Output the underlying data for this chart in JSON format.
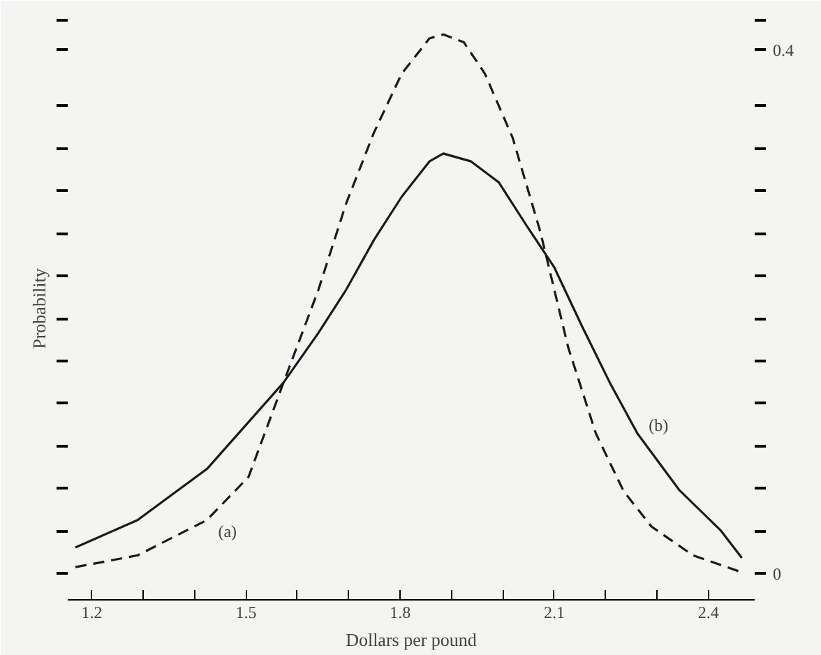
{
  "chart_data": {
    "type": "line",
    "xlabel": "Dollars per pound",
    "ylabel": "Probability",
    "xlim": [
      1.153,
      2.49
    ],
    "ylim": [
      -0.02,
      0.425
    ],
    "xticks": [
      {
        "value": 1.2,
        "label": "1.2"
      },
      {
        "value": 1.3,
        "label": null
      },
      {
        "value": 1.4,
        "label": null
      },
      {
        "value": 1.5,
        "label": "1.5"
      },
      {
        "value": 1.6,
        "label": null
      },
      {
        "value": 1.7,
        "label": null
      },
      {
        "value": 1.8,
        "label": "1.8"
      },
      {
        "value": 1.9,
        "label": null
      },
      {
        "value": 2.0,
        "label": null
      },
      {
        "value": 2.1,
        "label": "2.1"
      },
      {
        "value": 2.2,
        "label": null
      },
      {
        "value": 2.3,
        "label": null
      },
      {
        "value": 2.4,
        "label": "2.4"
      }
    ],
    "yticks": [
      0,
      {
        "value": 0.0325,
        "label": null
      },
      {
        "value": 0.065,
        "label": null
      },
      {
        "value": 0.0975,
        "label": null
      },
      {
        "value": 0.13,
        "label": null
      },
      {
        "value": 0.1625,
        "label": null
      },
      {
        "value": 0.195,
        "label": null
      },
      {
        "value": 0.2275,
        "label": null
      },
      {
        "value": 0.26,
        "label": null
      },
      {
        "value": 0.2925,
        "label": null
      },
      {
        "value": 0.325,
        "label": null
      },
      {
        "value": 0.3575,
        "label": null
      },
      {
        "value": 0.4,
        "label": "0.4"
      },
      {
        "value": 0.4225,
        "label": null
      }
    ],
    "grid": false,
    "marker": "none",
    "series": [
      {
        "name": "(a)",
        "color": "#1a1a1a",
        "line_style": "dashed",
        "x": [
          1.168,
          1.289,
          1.424,
          1.505,
          1.573,
          1.641,
          1.695,
          1.749,
          1.803,
          1.857,
          1.884,
          1.924,
          1.965,
          2.019,
          2.073,
          2.127,
          2.181,
          2.235,
          2.289,
          2.37,
          2.465
        ],
        "values": [
          0.005,
          0.014,
          0.041,
          0.074,
          0.146,
          0.217,
          0.283,
          0.337,
          0.382,
          0.409,
          0.412,
          0.406,
          0.382,
          0.333,
          0.261,
          0.173,
          0.107,
          0.063,
          0.036,
          0.014,
          0.001
        ]
      },
      {
        "name": "(b)",
        "color": "#1a1a1a",
        "line_style": "solid",
        "x": [
          1.168,
          1.289,
          1.424,
          1.573,
          1.641,
          1.695,
          1.749,
          1.803,
          1.857,
          1.884,
          1.938,
          1.992,
          2.046,
          2.1,
          2.154,
          2.208,
          2.262,
          2.343,
          2.424,
          2.465
        ],
        "values": [
          0.02,
          0.041,
          0.08,
          0.146,
          0.184,
          0.217,
          0.255,
          0.288,
          0.315,
          0.321,
          0.315,
          0.299,
          0.266,
          0.234,
          0.189,
          0.146,
          0.107,
          0.064,
          0.033,
          0.012
        ]
      }
    ]
  }
}
